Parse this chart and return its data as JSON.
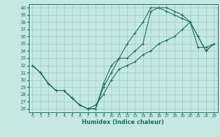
{
  "title": "",
  "xlabel": "Humidex (Indice chaleur)",
  "bg_color": "#c5e8e4",
  "grid_color": "#9fcfca",
  "line_color": "#1e6b65",
  "xlim": [
    -0.5,
    23.5
  ],
  "ylim": [
    25.5,
    40.5
  ],
  "yticks": [
    26,
    27,
    28,
    29,
    30,
    31,
    32,
    33,
    34,
    35,
    36,
    37,
    38,
    39,
    40
  ],
  "xticks": [
    0,
    1,
    2,
    3,
    4,
    5,
    6,
    7,
    8,
    9,
    10,
    11,
    12,
    13,
    14,
    15,
    16,
    17,
    18,
    19,
    20,
    21,
    22,
    23
  ],
  "line1_x": [
    0,
    1,
    2,
    3,
    4,
    5,
    6,
    7,
    8,
    9,
    10,
    11,
    12,
    13,
    14,
    15,
    16,
    17,
    18,
    19,
    20,
    21,
    22,
    23
  ],
  "line1_y": [
    32,
    31,
    29.5,
    28.5,
    28.5,
    27.5,
    26.5,
    26,
    26,
    29,
    31,
    33,
    33,
    34,
    35,
    39.5,
    40,
    40,
    39.5,
    39,
    38,
    36,
    34,
    35
  ],
  "line2_x": [
    0,
    1,
    2,
    3,
    4,
    5,
    6,
    7,
    8,
    9,
    10,
    11,
    12,
    13,
    14,
    15,
    16,
    17,
    18,
    19,
    20,
    21,
    22,
    23
  ],
  "line2_y": [
    32,
    31,
    29.5,
    28.5,
    28.5,
    27.5,
    26.5,
    26,
    26,
    29.5,
    32,
    33,
    35,
    36.5,
    38,
    40,
    40,
    39.5,
    39,
    38.5,
    38,
    36,
    34,
    35
  ],
  "line3_x": [
    0,
    1,
    2,
    3,
    4,
    5,
    6,
    7,
    8,
    9,
    10,
    11,
    12,
    13,
    14,
    15,
    16,
    17,
    18,
    19,
    20,
    21,
    22,
    23
  ],
  "line3_y": [
    32,
    31,
    29.5,
    28.5,
    28.5,
    27.5,
    26.5,
    26,
    26.5,
    28,
    30,
    31.5,
    32,
    32.5,
    33.5,
    34,
    35,
    35.5,
    36,
    37,
    38,
    34.5,
    34.5,
    35
  ]
}
